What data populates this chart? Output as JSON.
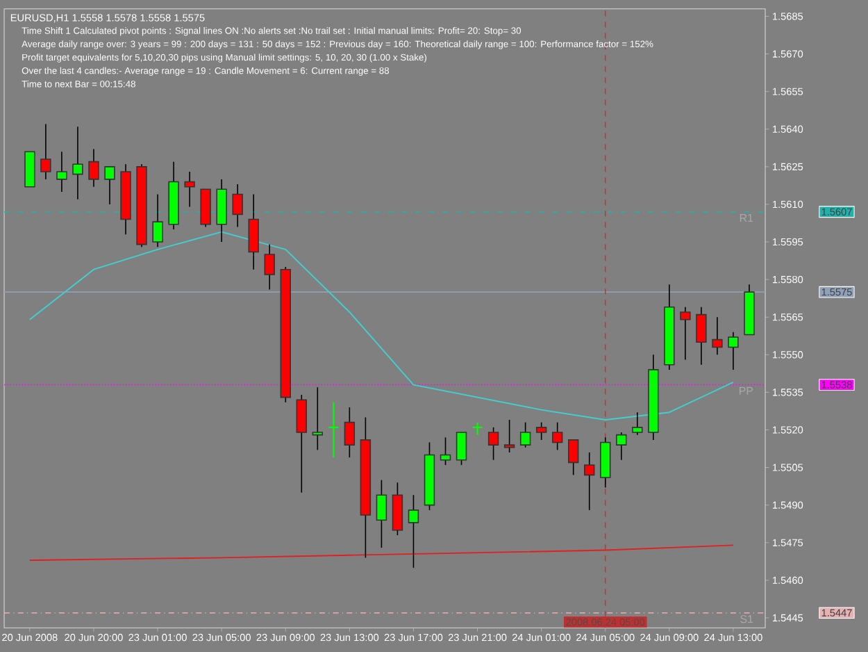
{
  "chart_data": {
    "type": "candlestick",
    "title": "EURUSD,H1  1.5558 1.5578 1.5558 1.5575",
    "categories": [
      "20 Jun 2008",
      null,
      null,
      null,
      "20 Jun 20:00",
      null,
      null,
      null,
      "23 Jun 01:00",
      null,
      null,
      null,
      "23 Jun 05:00",
      null,
      null,
      null,
      "23 Jun 09:00",
      null,
      null,
      null,
      "23 Jun 13:00",
      null,
      null,
      null,
      "23 Jun 17:00",
      null,
      null,
      null,
      "23 Jun 21:00",
      null,
      null,
      null,
      "24 Jun 01:00",
      null,
      null,
      null,
      "24 Jun 05:00",
      null,
      null,
      null,
      "24 Jun 09:00",
      null,
      null,
      null,
      "24 Jun 13:00",
      null
    ],
    "ohlc": [
      [
        1.5617,
        1.5631,
        1.5617,
        1.5631
      ],
      [
        1.5628,
        1.5642,
        1.562,
        1.5623
      ],
      [
        1.562,
        1.5631,
        1.5615,
        1.5623
      ],
      [
        1.5622,
        1.5641,
        1.5612,
        1.5626
      ],
      [
        1.5627,
        1.5632,
        1.5617,
        1.562
      ],
      [
        1.562,
        1.5625,
        1.561,
        1.5625
      ],
      [
        1.5623,
        1.5626,
        1.5598,
        1.5604
      ],
      [
        1.5625,
        1.5626,
        1.5593,
        1.5594
      ],
      [
        1.5595,
        1.5614,
        1.5593,
        1.5603
      ],
      [
        1.5602,
        1.5627,
        1.56,
        1.5619
      ],
      [
        1.5619,
        1.5623,
        1.5609,
        1.5617
      ],
      [
        1.5616,
        1.5616,
        1.5601,
        1.5602
      ],
      [
        1.5602,
        1.562,
        1.5595,
        1.5616
      ],
      [
        1.5614,
        1.5618,
        1.5601,
        1.5606
      ],
      [
        1.5604,
        1.5614,
        1.5584,
        1.5591
      ],
      [
        1.559,
        1.5594,
        1.5576,
        1.5582
      ],
      [
        1.5584,
        1.5585,
        1.5531,
        1.5533
      ],
      [
        1.5532,
        1.5534,
        1.5495,
        1.5519
      ],
      [
        1.5518,
        1.5537,
        1.5512,
        1.5519
      ],
      [
        1.5521,
        1.5531,
        1.5509,
        1.5521
      ],
      [
        1.5523,
        1.5529,
        1.5509,
        1.5514
      ],
      [
        1.5516,
        1.5525,
        1.5469,
        1.5486
      ],
      [
        1.5484,
        1.55,
        1.5473,
        1.5494
      ],
      [
        1.5494,
        1.5499,
        1.5478,
        1.548
      ],
      [
        1.5483,
        1.5494,
        1.5465,
        1.5488
      ],
      [
        1.549,
        1.5515,
        1.5488,
        1.551
      ],
      [
        1.5508,
        1.5517,
        1.5506,
        1.551
      ],
      [
        1.5508,
        1.5519,
        1.5506,
        1.5519
      ],
      [
        1.5521,
        1.5523,
        1.5518,
        1.5521
      ],
      [
        1.5519,
        1.5521,
        1.5508,
        1.5514
      ],
      [
        1.5514,
        1.5524,
        1.5511,
        1.5513
      ],
      [
        1.5514,
        1.5523,
        1.5513,
        1.5519
      ],
      [
        1.5521,
        1.5523,
        1.5516,
        1.5519
      ],
      [
        1.5519,
        1.5523,
        1.5512,
        1.5515
      ],
      [
        1.5516,
        1.5516,
        1.5502,
        1.5507
      ],
      [
        1.5506,
        1.5511,
        1.5488,
        1.5502
      ],
      [
        1.5501,
        1.5517,
        1.5497,
        1.5515
      ],
      [
        1.5514,
        1.5519,
        1.5508,
        1.5518
      ],
      [
        1.5519,
        1.5527,
        1.5518,
        1.5521
      ],
      [
        1.5519,
        1.555,
        1.5516,
        1.5544
      ],
      [
        1.5546,
        1.5578,
        1.5544,
        1.5569
      ],
      [
        1.5567,
        1.5569,
        1.5548,
        1.5564
      ],
      [
        1.5566,
        1.5569,
        1.5546,
        1.5555
      ],
      [
        1.5556,
        1.5565,
        1.555,
        1.5553
      ],
      [
        1.5553,
        1.5559,
        1.5544,
        1.5557
      ],
      [
        1.5558,
        1.5578,
        1.5558,
        1.5575
      ]
    ],
    "colors": [
      "#00ff00",
      "#ff0000",
      "#00ff00",
      "#00ff00",
      "#ff0000",
      "#00ff00",
      "#ff0000",
      "#ff0000",
      "#00ff00",
      "#00ff00",
      "#ff0000",
      "#ff0000",
      "#00ff00",
      "#ff0000",
      "#ff0000",
      "#ff0000",
      "#ff0000",
      "#ff0000",
      "#00ff00",
      "#00ff00",
      "#ff0000",
      "#ff0000",
      "#00ff00",
      "#ff0000",
      "#00ff00",
      "#00ff00",
      "#00ff00",
      "#00ff00",
      "#00ff00",
      "#ff0000",
      "#ff0000",
      "#00ff00",
      "#ff0000",
      "#ff0000",
      "#ff0000",
      "#ff0000",
      "#00ff00",
      "#00ff00",
      "#00ff00",
      "#00ff00",
      "#00ff00",
      "#ff0000",
      "#ff0000",
      "#ff0000",
      "#00ff00",
      "#00ff00"
    ],
    "series": [
      {
        "type": "line",
        "color": "#40d0d0",
        "x": [
          "20 Jun 2008",
          "20 Jun 20:00",
          "23 Jun 01:00",
          "23 Jun 05:00",
          "23 Jun 09:00",
          "23 Jun 13:00",
          "23 Jun 17:00",
          "23 Jun 21:00",
          "24 Jun 01:00",
          "24 Jun 05:00",
          "24 Jun 09:00",
          "24 Jun 13:00"
        ],
        "values": [
          1.5564,
          1.5584,
          1.5592,
          1.5599,
          1.5592,
          1.5567,
          1.5538,
          1.5533,
          1.5528,
          1.5524,
          1.5527,
          1.5539
        ]
      },
      {
        "type": "line",
        "color": "#e02020",
        "x": [
          "20 Jun 2008",
          "23 Jun 05:00",
          "23 Jun 13:00",
          "23 Jun 21:00",
          "24 Jun 05:00",
          "24 Jun 13:00"
        ],
        "values": [
          1.5468,
          1.5469,
          1.547,
          1.5471,
          1.5472,
          1.5474
        ]
      }
    ],
    "ylim": [
      1.5441,
      1.5688
    ],
    "yticks": [
      1.5445,
      {
        "value": 1.546,
        "label": "1.5460"
      },
      1.5475,
      {
        "value": 1.549,
        "label": "1.5490"
      },
      1.5505,
      {
        "value": 1.552,
        "label": "1.5520"
      },
      1.5535,
      {
        "value": 1.555,
        "label": "1.5550"
      },
      1.5565,
      {
        "value": 1.558,
        "label": "1.5580"
      },
      1.5595,
      {
        "value": 1.561,
        "label": "1.5610"
      },
      1.5625,
      {
        "value": 1.564,
        "label": "1.5640"
      },
      1.5655,
      {
        "value": 1.567,
        "label": "1.5670"
      },
      1.5685
    ],
    "ref_lines": [
      {
        "axis": "y",
        "value": 1.5607,
        "label": "R1",
        "color": "#20b2aa",
        "line_style": "dashed"
      },
      {
        "axis": "y",
        "value": 1.5575,
        "color": "#8fa0b8",
        "line_style": "solid"
      },
      {
        "axis": "y",
        "value": 1.5538,
        "label": "PP",
        "color": "#ff00ff",
        "line_style": "dotted"
      },
      {
        "axis": "y",
        "value": 1.5447,
        "label": "S1",
        "color": "#e8b0b0",
        "line_style": "dashed"
      }
    ],
    "annotations": [
      "Time Shift 1 Calculated pivot points : Signal lines ON :No alerts set :No trail set : Initial manual limits: Profit= 20: Stop= 30",
      "Average daily range over: 3 years = 99 : 200 days = 131 : 50 days = 152 : Previous day = 160: Theoretical daily range = 100: Performance factor = 152%",
      "Profit target equivalents for 5,10,20,30 pips using Manual limit settings: 5, 10, 20, 30 (1.00 x Stake)",
      "Over the last 4 candles:- Average range = 19 : Candle Movement = 6: Current range = 88",
      "Time to next Bar = 00:15:48",
      {
        "text": "2008.06.24 05:00",
        "x": "24 Jun 05:00"
      },
      "1.5607",
      "1.5575",
      "1.5538",
      "1.5447"
    ],
    "grid": false
  }
}
